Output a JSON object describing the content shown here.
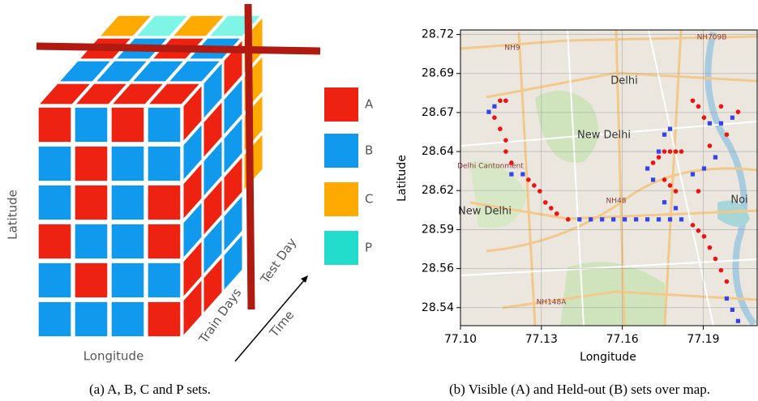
{
  "diagram": {
    "latitude": "Latitude",
    "longitude": "Longitude",
    "train_days": "Train Days",
    "test_day": "Test Day",
    "time": "Time",
    "legend": [
      "A",
      "B",
      "C",
      "P"
    ]
  },
  "captions": [
    "(a) A, B, C and P sets.",
    "(b) Visible (A) and Held-out (B) sets over map."
  ],
  "chart_data": {
    "type": "scatter",
    "xlabel": "Longitude",
    "ylabel": "Latitude",
    "annotations": [
      "NH9",
      "NH709B",
      "Delhi",
      "New Delhi",
      "Delhi Cantonment",
      "New Delhi",
      "NH48",
      "NH148A",
      "Noi"
    ],
    "xlim": [
      77.1,
      77.21
    ],
    "ylim": [
      28.526,
      28.723
    ],
    "xticks": [
      {
        "value": 77.1,
        "label": "77.10"
      },
      77.13,
      77.16,
      77.19
    ],
    "yticks": [
      28.72,
      {
        "value": 28.694,
        "label": "28.69"
      },
      {
        "value": 28.668,
        "label": "28.67"
      },
      {
        "value": 28.642,
        "label": "28.64"
      },
      {
        "value": 28.616,
        "label": "28.62"
      },
      28.59,
      {
        "value": 28.564,
        "label": "28.56"
      },
      {
        "value": 28.538,
        "label": "28.54"
      }
    ],
    "grid": true,
    "series": [
      {
        "color": "#ee1111",
        "marker": "circle",
        "x": [
          77.1147,
          77.1168,
          77.1126,
          77.1147,
          77.1168,
          77.1168,
          77.1189,
          77.1252,
          77.1273,
          77.1294,
          77.1315,
          77.1336,
          77.1357,
          77.1399,
          77.1714,
          77.1735,
          77.1756,
          77.1777,
          77.1798,
          77.1819,
          77.1756,
          77.1777,
          77.1798,
          77.1882,
          77.1861,
          77.1882,
          77.1903,
          77.1924,
          77.1945,
          77.1966,
          77.1987,
          77.1861,
          77.1882,
          77.1903,
          77.1966,
          77.2029,
          77.1987,
          77.1924
        ],
        "values": [
          28.6759,
          28.6759,
          28.6646,
          28.6571,
          28.6495,
          28.642,
          28.6345,
          28.6232,
          28.6194,
          28.6156,
          28.6081,
          28.6043,
          28.6006,
          28.5968,
          28.6345,
          28.6382,
          28.642,
          28.642,
          28.642,
          28.642,
          28.6232,
          28.6194,
          28.6156,
          28.6156,
          28.593,
          28.5893,
          28.5855,
          28.578,
          28.5705,
          28.5629,
          28.5554,
          28.6759,
          28.6721,
          28.6646,
          28.6721,
          28.6684,
          28.6533,
          28.6458
        ]
      },
      {
        "color": "#3344ee",
        "marker": "square",
        "x": [
          77.1105,
          77.1126,
          77.1189,
          77.1231,
          77.1441,
          77.1483,
          77.1525,
          77.1567,
          77.1609,
          77.1651,
          77.1693,
          77.1735,
          77.1777,
          77.1819,
          77.1693,
          77.1714,
          77.1756,
          77.1798,
          77.1735,
          77.1756,
          77.1777,
          77.1861,
          77.1903,
          77.1945,
          77.1924,
          77.1966,
          77.2008,
          77.1987,
          77.2008,
          77.2029
        ],
        "values": [
          28.6684,
          28.6721,
          28.6269,
          28.6269,
          28.5968,
          28.5968,
          28.5968,
          28.5968,
          28.5968,
          28.5968,
          28.5968,
          28.5968,
          28.5968,
          28.5968,
          28.6307,
          28.6232,
          28.6082,
          28.6043,
          28.642,
          28.6533,
          28.6571,
          28.6269,
          28.6307,
          28.6382,
          28.6608,
          28.6608,
          28.6646,
          28.5441,
          28.5366,
          28.5291
        ]
      }
    ]
  }
}
